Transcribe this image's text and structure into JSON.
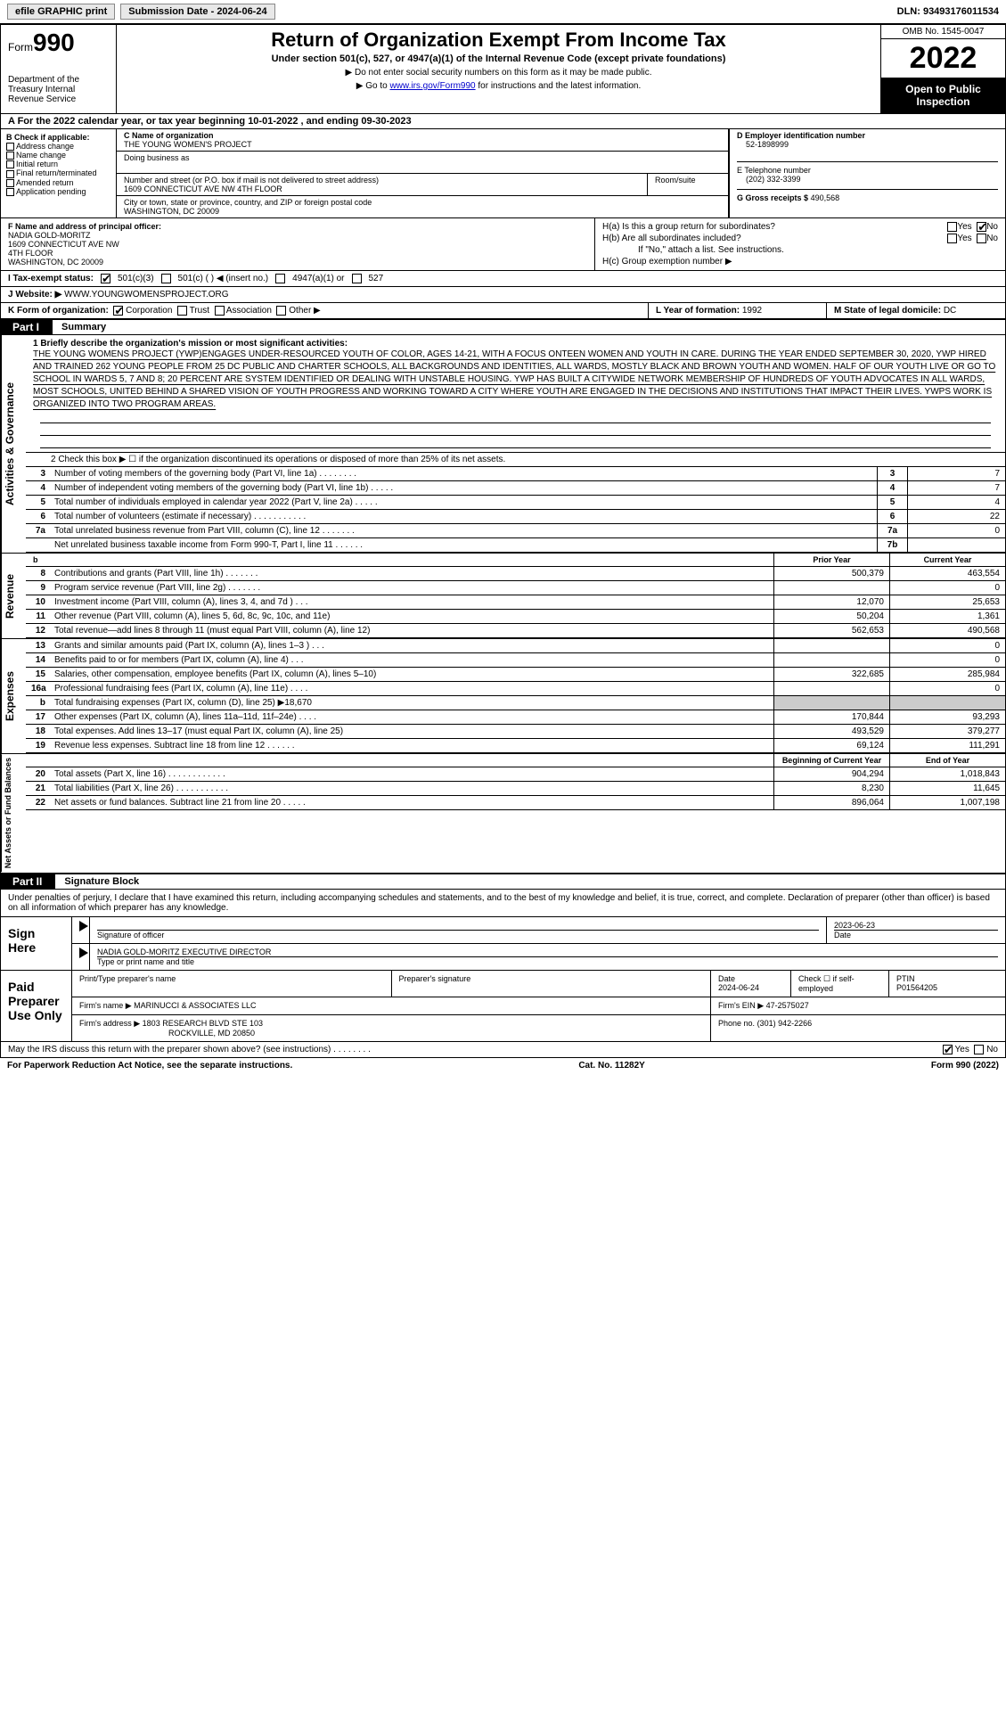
{
  "topbar": {
    "efile": "efile GRAPHIC print",
    "submission": "Submission Date - 2024-06-24",
    "dln": "DLN: 93493176011534"
  },
  "header": {
    "form": "Form",
    "number": "990",
    "dept": "Department of the Treasury Internal Revenue Service",
    "title": "Return of Organization Exempt From Income Tax",
    "sub": "Under section 501(c), 527, or 4947(a)(1) of the Internal Revenue Code (except private foundations)",
    "note1": "▶ Do not enter social security numbers on this form as it may be made public.",
    "note2_pre": "▶ Go to ",
    "note2_link": "www.irs.gov/Form990",
    "note2_post": " for instructions and the latest information.",
    "omb": "OMB No. 1545-0047",
    "year": "2022",
    "open_pub": "Open to Public Inspection"
  },
  "rowA": "A For the 2022 calendar year, or tax year beginning 10-01-2022   , and ending 09-30-2023",
  "boxB": {
    "label": "B Check if applicable:",
    "items": [
      "Address change",
      "Name change",
      "Initial return",
      "Final return/terminated",
      "Amended return",
      "Application pending"
    ]
  },
  "boxC": {
    "label": "C Name of organization",
    "name": "THE YOUNG WOMEN'S PROJECT",
    "dba_label": "Doing business as",
    "street_label": "Number and street (or P.O. box if mail is not delivered to street address)",
    "room_label": "Room/suite",
    "street": "1609 CONNECTICUT AVE NW 4TH FLOOR",
    "city_label": "City or town, state or province, country, and ZIP or foreign postal code",
    "city": "WASHINGTON, DC  20009"
  },
  "boxD": {
    "label": "D Employer identification number",
    "value": "52-1898999"
  },
  "boxE": {
    "label": "E Telephone number",
    "value": "(202) 332-3399"
  },
  "boxG": {
    "label": "G Gross receipts $",
    "value": "490,568"
  },
  "boxF": {
    "label": "F  Name and address of principal officer:",
    "name": "NADIA GOLD-MORITZ",
    "line1": "1609 CONNECTICUT AVE NW",
    "line2": "4TH FLOOR",
    "line3": "WASHINGTON, DC  20009"
  },
  "boxH": {
    "ha": "H(a)  Is this a group return for subordinates?",
    "hb": "H(b)  Are all subordinates included?",
    "hnote": "If \"No,\" attach a list. See instructions.",
    "hc": "H(c)  Group exemption number ▶",
    "yes": "Yes",
    "no": "No"
  },
  "rowI": {
    "label": "I    Tax-exempt status:",
    "opt1": "501(c)(3)",
    "opt2": "501(c) (   ) ◀ (insert no.)",
    "opt3": "4947(a)(1) or",
    "opt4": "527"
  },
  "rowJ": {
    "label": "J    Website: ▶",
    "value": "WWW.YOUNGWOMENSPROJECT.ORG"
  },
  "rowK": {
    "label": "K Form of organization:",
    "opt1": "Corporation",
    "opt2": "Trust",
    "opt3": "Association",
    "opt4": "Other ▶",
    "l_label": "L Year of formation:",
    "l_val": "1992",
    "m_label": "M State of legal domicile:",
    "m_val": "DC"
  },
  "part1": {
    "badge": "Part I",
    "title": "Summary",
    "side_gov": "Activities & Governance",
    "side_rev": "Revenue",
    "side_exp": "Expenses",
    "side_net": "Net Assets or Fund Balances",
    "mission_label": "1   Briefly describe the organization's mission or most significant activities:",
    "mission": "THE YOUNG WOMENS PROJECT (YWP)ENGAGES UNDER-RESOURCED YOUTH OF COLOR, AGES 14-21, WITH A FOCUS ONTEEN WOMEN AND YOUTH IN CARE. DURING THE YEAR ENDED SEPTEMBER 30, 2020, YWP HIRED AND TRAINED 262 YOUNG PEOPLE FROM 25 DC PUBLIC AND CHARTER SCHOOLS, ALL BACKGROUNDS AND IDENTITIES, ALL WARDS, MOSTLY BLACK AND BROWN YOUTH AND WOMEN. HALF OF OUR YOUTH LIVE OR GO TO SCHOOL IN WARDS 5, 7 AND 8; 20 PERCENT ARE SYSTEM IDENTIFIED OR DEALING WITH UNSTABLE HOUSING. YWP HAS BUILT A CITYWIDE NETWORK MEMBERSHIP OF HUNDREDS OF YOUTH ADVOCATES IN ALL WARDS, MOST SCHOOLS, UNITED BEHIND A SHARED VISION OF YOUTH PROGRESS AND WORKING TOWARD A CITY WHERE YOUTH ARE ENGAGED IN THE DECISIONS AND INSTITUTIONS THAT IMPACT THEIR LIVES. YWPS WORK IS ORGANIZED INTO TWO PROGRAM AREAS.",
    "line2": "2   Check this box ▶ ☐ if the organization discontinued its operations or disposed of more than 25% of its net assets.",
    "lines": [
      {
        "n": "3",
        "t": "Number of voting members of the governing body (Part VI, line 1a)   .    .    .    .    .    .    .    .",
        "b": "3",
        "v": "7"
      },
      {
        "n": "4",
        "t": "Number of independent voting members of the governing body (Part VI, line 1b)    .    .    .    .    .",
        "b": "4",
        "v": "7"
      },
      {
        "n": "5",
        "t": "Total number of individuals employed in calendar year 2022 (Part V, line 2a)    .    .    .    .    .",
        "b": "5",
        "v": "4"
      },
      {
        "n": "6",
        "t": "Total number of volunteers (estimate if necessary)    .    .    .    .    .    .    .    .    .    .    .",
        "b": "6",
        "v": "22"
      },
      {
        "n": "7a",
        "t": "Total unrelated business revenue from Part VIII, column (C), line 12   .    .    .    .    .    .    .",
        "b": "7a",
        "v": "0"
      },
      {
        "n": "",
        "t": "Net unrelated business taxable income from Form 990-T, Part I, line 11   .    .    .    .    .    .",
        "b": "7b",
        "v": ""
      }
    ],
    "col_prior": "Prior Year",
    "col_curr": "Current Year",
    "rev": [
      {
        "n": "8",
        "t": "Contributions and grants (Part VIII, line 1h)   .    .    .    .    .    .    .",
        "p": "500,379",
        "c": "463,554"
      },
      {
        "n": "9",
        "t": "Program service revenue (Part VIII, line 2g)   .    .    .    .    .    .    .",
        "p": "",
        "c": "0"
      },
      {
        "n": "10",
        "t": "Investment income (Part VIII, column (A), lines 3, 4, and 7d )    .    .    .",
        "p": "12,070",
        "c": "25,653"
      },
      {
        "n": "11",
        "t": "Other revenue (Part VIII, column (A), lines 5, 6d, 8c, 9c, 10c, and 11e)",
        "p": "50,204",
        "c": "1,361"
      },
      {
        "n": "12",
        "t": "Total revenue—add lines 8 through 11 (must equal Part VIII, column (A), line 12)",
        "p": "562,653",
        "c": "490,568"
      }
    ],
    "exp": [
      {
        "n": "13",
        "t": "Grants and similar amounts paid (Part IX, column (A), lines 1–3 )   .    .    .",
        "p": "",
        "c": "0"
      },
      {
        "n": "14",
        "t": "Benefits paid to or for members (Part IX, column (A), line 4)   .    .    .",
        "p": "",
        "c": "0"
      },
      {
        "n": "15",
        "t": "Salaries, other compensation, employee benefits (Part IX, column (A), lines 5–10)",
        "p": "322,685",
        "c": "285,984"
      },
      {
        "n": "16a",
        "t": "Professional fundraising fees (Part IX, column (A), line 11e)   .    .    .    .",
        "p": "",
        "c": "0"
      },
      {
        "n": "b",
        "t": "Total fundraising expenses (Part IX, column (D), line 25) ▶18,670",
        "p": "grey",
        "c": "grey"
      },
      {
        "n": "17",
        "t": "Other expenses (Part IX, column (A), lines 11a–11d, 11f–24e)   .    .    .    .",
        "p": "170,844",
        "c": "93,293"
      },
      {
        "n": "18",
        "t": "Total expenses. Add lines 13–17 (must equal Part IX, column (A), line 25)",
        "p": "493,529",
        "c": "379,277"
      },
      {
        "n": "19",
        "t": "Revenue less expenses. Subtract line 18 from line 12   .    .    .    .    .    .",
        "p": "69,124",
        "c": "111,291"
      }
    ],
    "col_beg": "Beginning of Current Year",
    "col_end": "End of Year",
    "net": [
      {
        "n": "20",
        "t": "Total assets (Part X, line 16)   .    .    .    .    .    .    .    .    .    .    .    .",
        "p": "904,294",
        "c": "1,018,843"
      },
      {
        "n": "21",
        "t": "Total liabilities (Part X, line 26)   .    .    .    .    .    .    .    .    .    .    .",
        "p": "8,230",
        "c": "11,645"
      },
      {
        "n": "22",
        "t": "Net assets or fund balances. Subtract line 21 from line 20   .    .    .    .    .",
        "p": "896,064",
        "c": "1,007,198"
      }
    ]
  },
  "part2": {
    "badge": "Part II",
    "title": "Signature Block",
    "perjury": "Under penalties of perjury, I declare that I have examined this return, including accompanying schedules and statements, and to the best of my knowledge and belief, it is true, correct, and complete. Declaration of preparer (other than officer) is based on all information of which preparer has any knowledge.",
    "sign_here": "Sign Here",
    "sig_officer": "Signature of officer",
    "date_label": "Date",
    "date_val": "2023-06-23",
    "name_title": "NADIA GOLD-MORITZ  EXECUTIVE DIRECTOR",
    "type_name": "Type or print name and title",
    "paid_prep": "Paid Preparer Use Only",
    "print_name": "Print/Type preparer's name",
    "prep_sig": "Preparer's signature",
    "prep_date_label": "Date",
    "prep_date": "2024-06-24",
    "check_self": "Check ☐ if self-employed",
    "ptin_label": "PTIN",
    "ptin": "P01564205",
    "firm_name_label": "Firm's name    ▶",
    "firm_name": "MARINUCCI & ASSOCIATES LLC",
    "firm_ein_label": "Firm's EIN ▶",
    "firm_ein": "47-2575027",
    "firm_addr_label": "Firm's address ▶",
    "firm_addr1": "1803 RESEARCH BLVD STE 103",
    "firm_addr2": "ROCKVILLE, MD  20850",
    "phone_label": "Phone no.",
    "phone": "(301) 942-2266"
  },
  "discuss": {
    "text": "May the IRS discuss this return with the preparer shown above? (see instructions)   .    .    .    .    .    .    .    .",
    "yes": "Yes",
    "no": "No"
  },
  "footer": {
    "left": "For Paperwork Reduction Act Notice, see the separate instructions.",
    "mid": "Cat. No. 11282Y",
    "right": "Form 990 (2022)"
  }
}
